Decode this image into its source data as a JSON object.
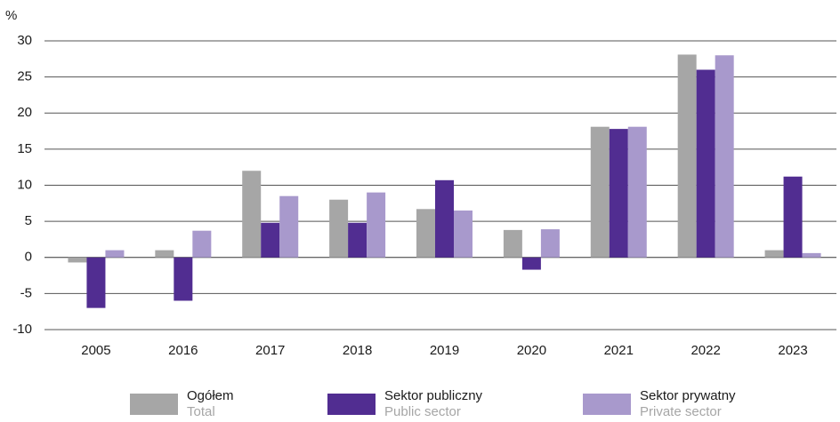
{
  "chart_data": {
    "type": "bar",
    "y_label": "%",
    "categories": [
      "2005",
      "2016",
      "2017",
      "2018",
      "2019",
      "2020",
      "2021",
      "2022",
      "2023"
    ],
    "series": [
      {
        "name": "Ogółem",
        "name_en": "Total",
        "color": "#a6a6a6",
        "values": [
          -0.7,
          1,
          12,
          8,
          6.7,
          3.8,
          18.1,
          28.1,
          1
        ]
      },
      {
        "name": "Sektor publiczny",
        "name_en": "Public sector",
        "color": "#512d91",
        "values": [
          -7,
          -6,
          4.8,
          4.8,
          10.7,
          -1.7,
          17.8,
          26,
          11.2
        ]
      },
      {
        "name": "Sektor prywatny",
        "name_en": "Private sector",
        "color": "#a899cc",
        "values": [
          1,
          3.7,
          8.5,
          9,
          6.5,
          3.9,
          18.1,
          28,
          0.6
        ]
      }
    ],
    "ylim": [
      -10,
      30
    ],
    "yticks": [
      -10,
      -5,
      0,
      5,
      10,
      15,
      20,
      25,
      30
    ],
    "grid": true,
    "legend": "bottom"
  }
}
